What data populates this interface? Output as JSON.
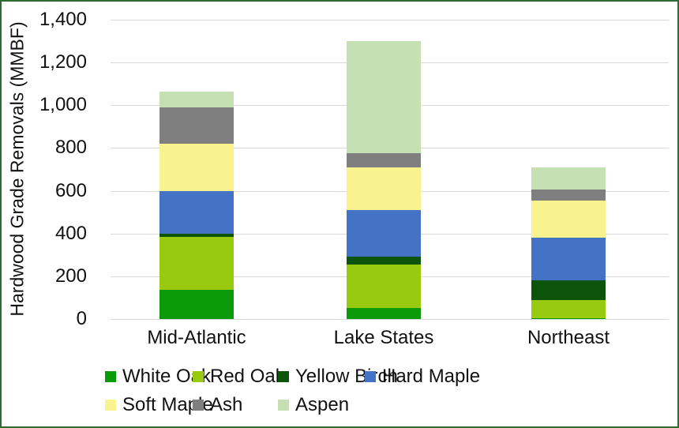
{
  "chart_data": {
    "type": "bar",
    "stacked": true,
    "title": "",
    "xlabel": "",
    "ylabel": "Hardwood Grade Removals (MMBF)",
    "ylim": [
      0,
      1400
    ],
    "ytick_values": [
      0,
      200,
      400,
      600,
      800,
      1000,
      1200,
      1400
    ],
    "ytick_labels": [
      "0",
      "200",
      "400",
      "600",
      "800",
      "1,000",
      "1,200",
      "1,400"
    ],
    "grid": true,
    "legend_position": "bottom",
    "categories": [
      "Mid-Atlantic",
      "Lake States",
      "Northeast"
    ],
    "series": [
      {
        "name": "White Oak",
        "color": "#0a9a0a",
        "values": [
          135,
          50,
          5
        ]
      },
      {
        "name": "Red Oak",
        "color": "#9aca10",
        "values": [
          250,
          205,
          85
        ]
      },
      {
        "name": "Yellow Birch",
        "color": "#0b5409",
        "values": [
          15,
          35,
          90
        ]
      },
      {
        "name": "Hard Maple",
        "color": "#4472c4",
        "values": [
          200,
          220,
          200
        ]
      },
      {
        "name": "Soft Maple",
        "color": "#f8f38f",
        "values": [
          220,
          200,
          175
        ]
      },
      {
        "name": "Ash",
        "color": "#7f7f7f",
        "values": [
          170,
          65,
          50
        ]
      },
      {
        "name": "Aspen",
        "color": "#c6e0b4",
        "values": [
          75,
          525,
          105
        ]
      }
    ],
    "totals": [
      1065,
      1300,
      710
    ]
  },
  "colors": {
    "chart_border": "#2e6b30",
    "gridline": "#d9d9d9",
    "text": "#111111",
    "background": "#ffffff"
  }
}
